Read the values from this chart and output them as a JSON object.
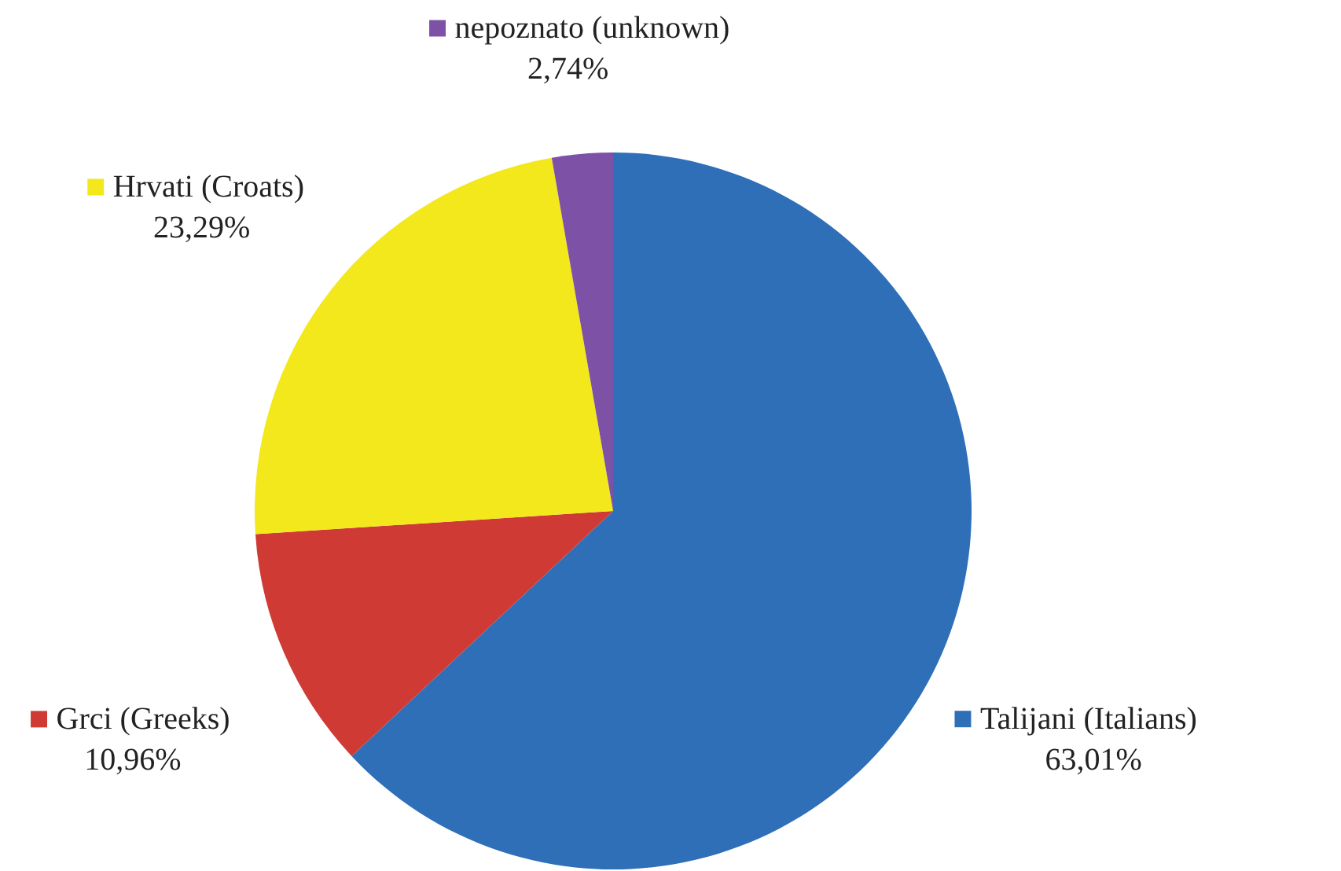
{
  "chart_data": {
    "type": "pie",
    "categories": [
      "Talijani (Italians)",
      "Grci (Greeks)",
      "Hrvati (Croats)",
      "nepoznato (unknown)"
    ],
    "values": [
      63.01,
      10.96,
      23.29,
      2.74
    ],
    "value_labels": [
      "63,01%",
      "10,96%",
      "23,29%",
      "2,74%"
    ],
    "colors": [
      "#2f6fb8",
      "#cf3a35",
      "#f2e81c",
      "#7d52a6"
    ],
    "legend": "right"
  }
}
